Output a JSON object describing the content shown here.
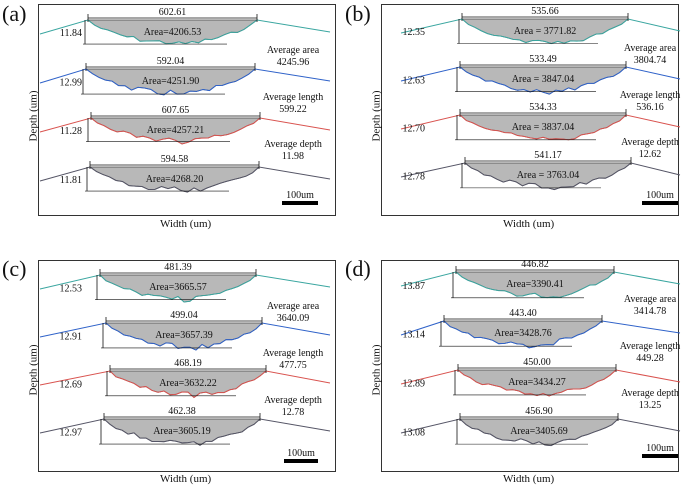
{
  "chart_data": [
    {
      "type": "profile",
      "panel_label": "(a)",
      "xlabel": "Width (um)",
      "ylabel": "Depth (um)",
      "scale_bar": "100um",
      "profiles": [
        {
          "width": "602.61",
          "depth": "11.84",
          "area_label": "Area=4206.53",
          "color": "#3aa6a0"
        },
        {
          "width": "592.04",
          "depth": "12.99",
          "area_label": "Area=4251.90",
          "color": "#2f62c9"
        },
        {
          "width": "607.65",
          "depth": "11.28",
          "area_label": "Area=4257.21",
          "color": "#d9534f"
        },
        {
          "width": "594.58",
          "depth": "11.81",
          "area_label": "Area=4268.20",
          "color": "#555566"
        }
      ],
      "stats": {
        "avg_area_label": "Average area",
        "avg_area": "4245.96",
        "avg_length_label": "Average length",
        "avg_length": "599.22",
        "avg_depth_label": "Average depth",
        "avg_depth": "11.98"
      }
    },
    {
      "type": "profile",
      "panel_label": "(b)",
      "xlabel": "Width (um)",
      "ylabel": "Depth (um)",
      "scale_bar": "100um",
      "profiles": [
        {
          "width": "535.66",
          "depth": "12.35",
          "area_label": "Area = 3771.82",
          "color": "#3aa6a0"
        },
        {
          "width": "533.49",
          "depth": "12.63",
          "area_label": "Area = 3847.04",
          "color": "#2f62c9"
        },
        {
          "width": "534.33",
          "depth": "12.70",
          "area_label": "Area = 3837.04",
          "color": "#d9534f"
        },
        {
          "width": "541.17",
          "depth": "12.78",
          "area_label": "Area = 3763.04",
          "color": "#555566"
        }
      ],
      "stats": {
        "avg_area_label": "Average area",
        "avg_area": "3804.74",
        "avg_length_label": "Average length",
        "avg_length": "536.16",
        "avg_depth_label": "Average depth",
        "avg_depth": "12.62"
      }
    },
    {
      "type": "profile",
      "panel_label": "(c)",
      "xlabel": "Width (um)",
      "ylabel": "Depth (um)",
      "scale_bar": "100um",
      "profiles": [
        {
          "width": "481.39",
          "depth": "12.53",
          "area_label": "Area=3665.57",
          "color": "#3aa6a0"
        },
        {
          "width": "499.04",
          "depth": "12.91",
          "area_label": "Area=3657.39",
          "color": "#2f62c9"
        },
        {
          "width": "468.19",
          "depth": "12.69",
          "area_label": "Area=3632.22",
          "color": "#d9534f"
        },
        {
          "width": "462.38",
          "depth": "12.97",
          "area_label": "Area=3605.19",
          "color": "#555566"
        }
      ],
      "stats": {
        "avg_area_label": "Average area",
        "avg_area": "3640.09",
        "avg_length_label": "Average length",
        "avg_length": "477.75",
        "avg_depth_label": "Average depth",
        "avg_depth": "12.78"
      }
    },
    {
      "type": "profile",
      "panel_label": "(d)",
      "xlabel": "Width (um)",
      "ylabel": "Depth (um)",
      "scale_bar": "100um",
      "profiles": [
        {
          "width": "446.82",
          "depth": "13.87",
          "area_label": "Area=3390.41",
          "color": "#3aa6a0"
        },
        {
          "width": "443.40",
          "depth": "13.14",
          "area_label": "Area=3428.76",
          "color": "#2f62c9"
        },
        {
          "width": "450.00",
          "depth": "12.89",
          "area_label": "Area=3434.27",
          "color": "#d9534f"
        },
        {
          "width": "456.90",
          "depth": "13.08",
          "area_label": "Area=3405.69",
          "color": "#555566"
        }
      ],
      "stats": {
        "avg_area_label": "Average area",
        "avg_area": "3414.78",
        "avg_length_label": "Average length",
        "avg_length": "449.28",
        "avg_depth_label": "Average depth",
        "avg_depth": "13.25"
      }
    }
  ]
}
